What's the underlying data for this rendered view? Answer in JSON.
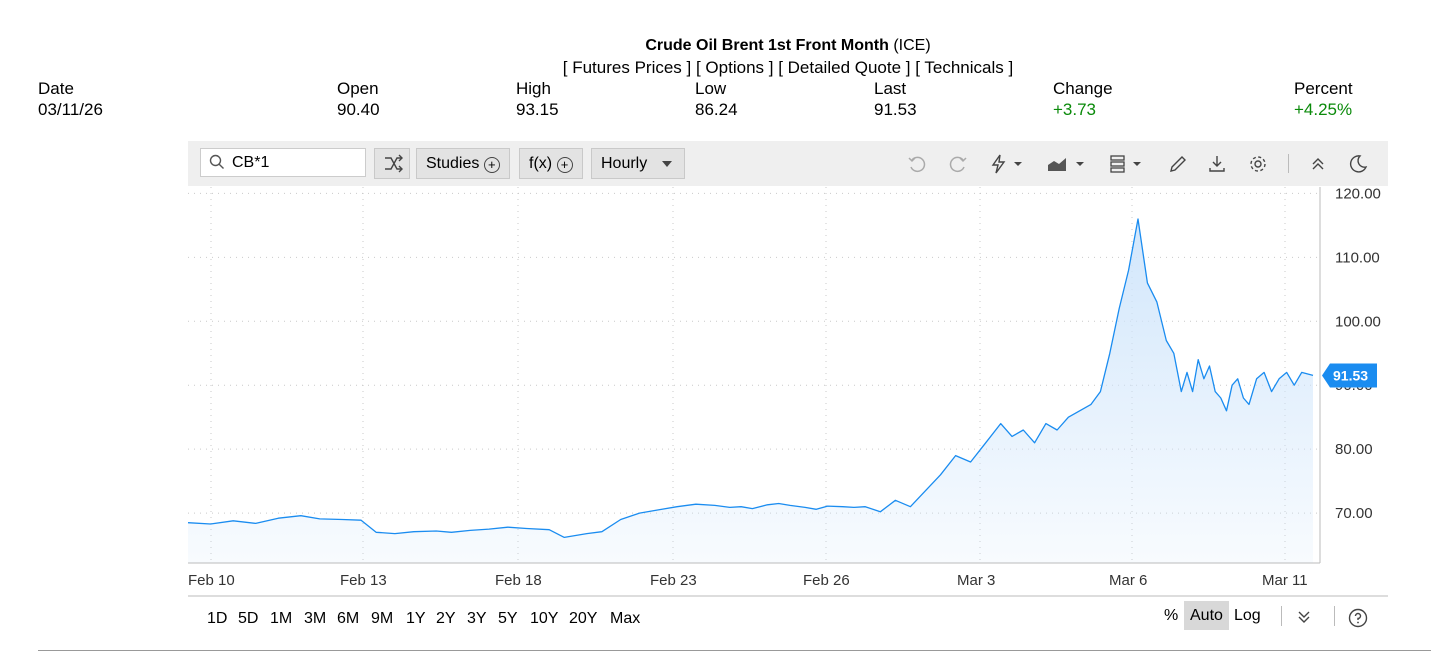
{
  "header": {
    "title_bold": "Crude Oil Brent 1st Front Month",
    "title_rest": " (ICE)",
    "links": [
      "[ Futures Prices ]",
      "[ Options ]",
      "[ Detailed Quote ]",
      "[ Technicals ]"
    ]
  },
  "quote": {
    "date_label": "Date",
    "date": "03/11/26",
    "open_label": "Open",
    "open": "90.40",
    "high_label": "High",
    "high": "93.15",
    "low_label": "Low",
    "low": "86.24",
    "last_label": "Last",
    "last": "91.53",
    "change_label": "Change",
    "change": "+3.73",
    "percent_label": "Percent",
    "percent": "+4.25%"
  },
  "toolbar": {
    "symbol": "CB*1",
    "studies_label": "Studies",
    "fx_label": "f(x)",
    "interval_label": "Hourly"
  },
  "colors": {
    "line": "#1a8cf0",
    "fill": "#cfe5fb",
    "positive": "#0a8a0a"
  },
  "chart_data": {
    "type": "area",
    "x_tick_labels": [
      "Feb 10",
      "Feb 13",
      "Feb 18",
      "Feb 23",
      "Feb 26",
      "Mar 3",
      "Mar 6",
      "Mar 11"
    ],
    "y_tick_labels": [
      "120.00",
      "110.00",
      "100.00",
      "90.00",
      "80.00",
      "70.00"
    ],
    "y_ticks": [
      120,
      110,
      100,
      90,
      80,
      70
    ],
    "ylim": [
      62.2,
      121.0
    ],
    "last_price_label": "91.53",
    "last_price": 91.53,
    "grid": true,
    "x": [
      0,
      0.6,
      1.2,
      1.8,
      2.4,
      3.0,
      3.5,
      4.1,
      4.6,
      5.0,
      5.5,
      6.0,
      6.6,
      7.0,
      7.5,
      8.0,
      8.5,
      9.0,
      9.6,
      10.0,
      10.6,
      11.0,
      11.5,
      12.0,
      12.5,
      13.0,
      13.5,
      14.0,
      14.4,
      14.7,
      15.0,
      15.4,
      15.7,
      16.0,
      16.4,
      16.7,
      17.0,
      17.4,
      17.7,
      18.0,
      18.4,
      18.8,
      19.2,
      19.6,
      20.0,
      20.4,
      20.8,
      21.2,
      21.6,
      21.9,
      22.2,
      22.5,
      22.8,
      23.1,
      23.4,
      23.7,
      24.0,
      24.25,
      24.5,
      24.75,
      25.0,
      25.25,
      25.5,
      25.75,
      26.0,
      26.2,
      26.4,
      26.55,
      26.7,
      26.85,
      27.0,
      27.15,
      27.3,
      27.45,
      27.6,
      27.75,
      27.9,
      28.05,
      28.2,
      28.4,
      28.6,
      28.8,
      29.0,
      29.2,
      29.4,
      29.6,
      29.9
    ],
    "values": [
      68.5,
      68.3,
      68.8,
      68.4,
      69.2,
      69.6,
      69.1,
      69.0,
      68.9,
      67.0,
      66.8,
      67.1,
      67.2,
      67.0,
      67.3,
      67.5,
      67.8,
      67.6,
      67.4,
      66.2,
      66.8,
      67.1,
      69.0,
      70.0,
      70.5,
      71.0,
      71.4,
      71.2,
      70.9,
      71.0,
      70.7,
      71.3,
      71.5,
      71.2,
      70.9,
      70.6,
      71.1,
      71.0,
      70.9,
      71.0,
      70.2,
      72.0,
      71.0,
      73.5,
      76.0,
      79.0,
      78.0,
      81.0,
      84.0,
      82.0,
      83.0,
      81.0,
      84.0,
      83.0,
      85.0,
      86.0,
      87.0,
      89.0,
      95.0,
      102.0,
      108.0,
      116.0,
      106.0,
      103.0,
      97.0,
      95.0,
      89.0,
      92.0,
      89.0,
      94.0,
      91.0,
      93.0,
      89.0,
      88.0,
      86.0,
      90.0,
      91.0,
      88.0,
      87.0,
      91.0,
      92.0,
      89.0,
      91.0,
      92.0,
      90.0,
      92.0,
      91.53
    ]
  },
  "range_buttons": [
    "1D",
    "5D",
    "1M",
    "3M",
    "6M",
    "9M",
    "1Y",
    "2Y",
    "3Y",
    "5Y",
    "10Y",
    "20Y",
    "Max"
  ],
  "scale_options": {
    "percent": "%",
    "auto": "Auto",
    "log": "Log"
  }
}
